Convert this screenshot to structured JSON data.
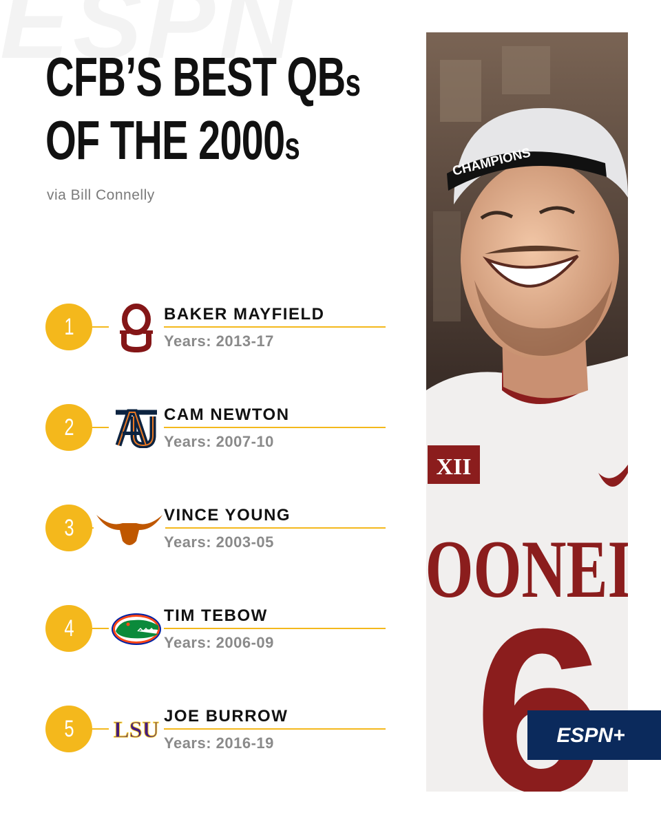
{
  "watermark": "ESPN",
  "headline": {
    "line1_main": "CFB’S BEST QB",
    "line1_suffix": "s",
    "line2_main": "OF THE 2000",
    "line2_suffix": "s"
  },
  "credit": "via Bill Connelly",
  "accent_color": "#f4b81c",
  "players": [
    {
      "rank": "1",
      "name": "BAKER MAYFIELD",
      "years": "Years: 2013-17",
      "logo_icon": "oklahoma-logo-icon",
      "logo_text": "OU"
    },
    {
      "rank": "2",
      "name": "CAM NEWTON",
      "years": "Years: 2007-10",
      "logo_icon": "auburn-logo-icon",
      "logo_text": "AU"
    },
    {
      "rank": "3",
      "name": "VINCE YOUNG",
      "years": "Years: 2003-05",
      "logo_icon": "texas-longhorn-logo-icon",
      "logo_text": ""
    },
    {
      "rank": "4",
      "name": "TIM TEBOW",
      "years": "Years: 2006-09",
      "logo_icon": "florida-gator-logo-icon",
      "logo_text": ""
    },
    {
      "rank": "5",
      "name": "JOE BURROW",
      "years": "Years: 2016-19",
      "logo_icon": "lsu-logo-icon",
      "logo_text": "LSU"
    }
  ],
  "photo": {
    "hat_text": "CHAMPIONS",
    "jersey_text": "OONEI",
    "patch_text": "XII",
    "number": "6"
  },
  "brand": {
    "espn_plus": "ESPN+"
  }
}
